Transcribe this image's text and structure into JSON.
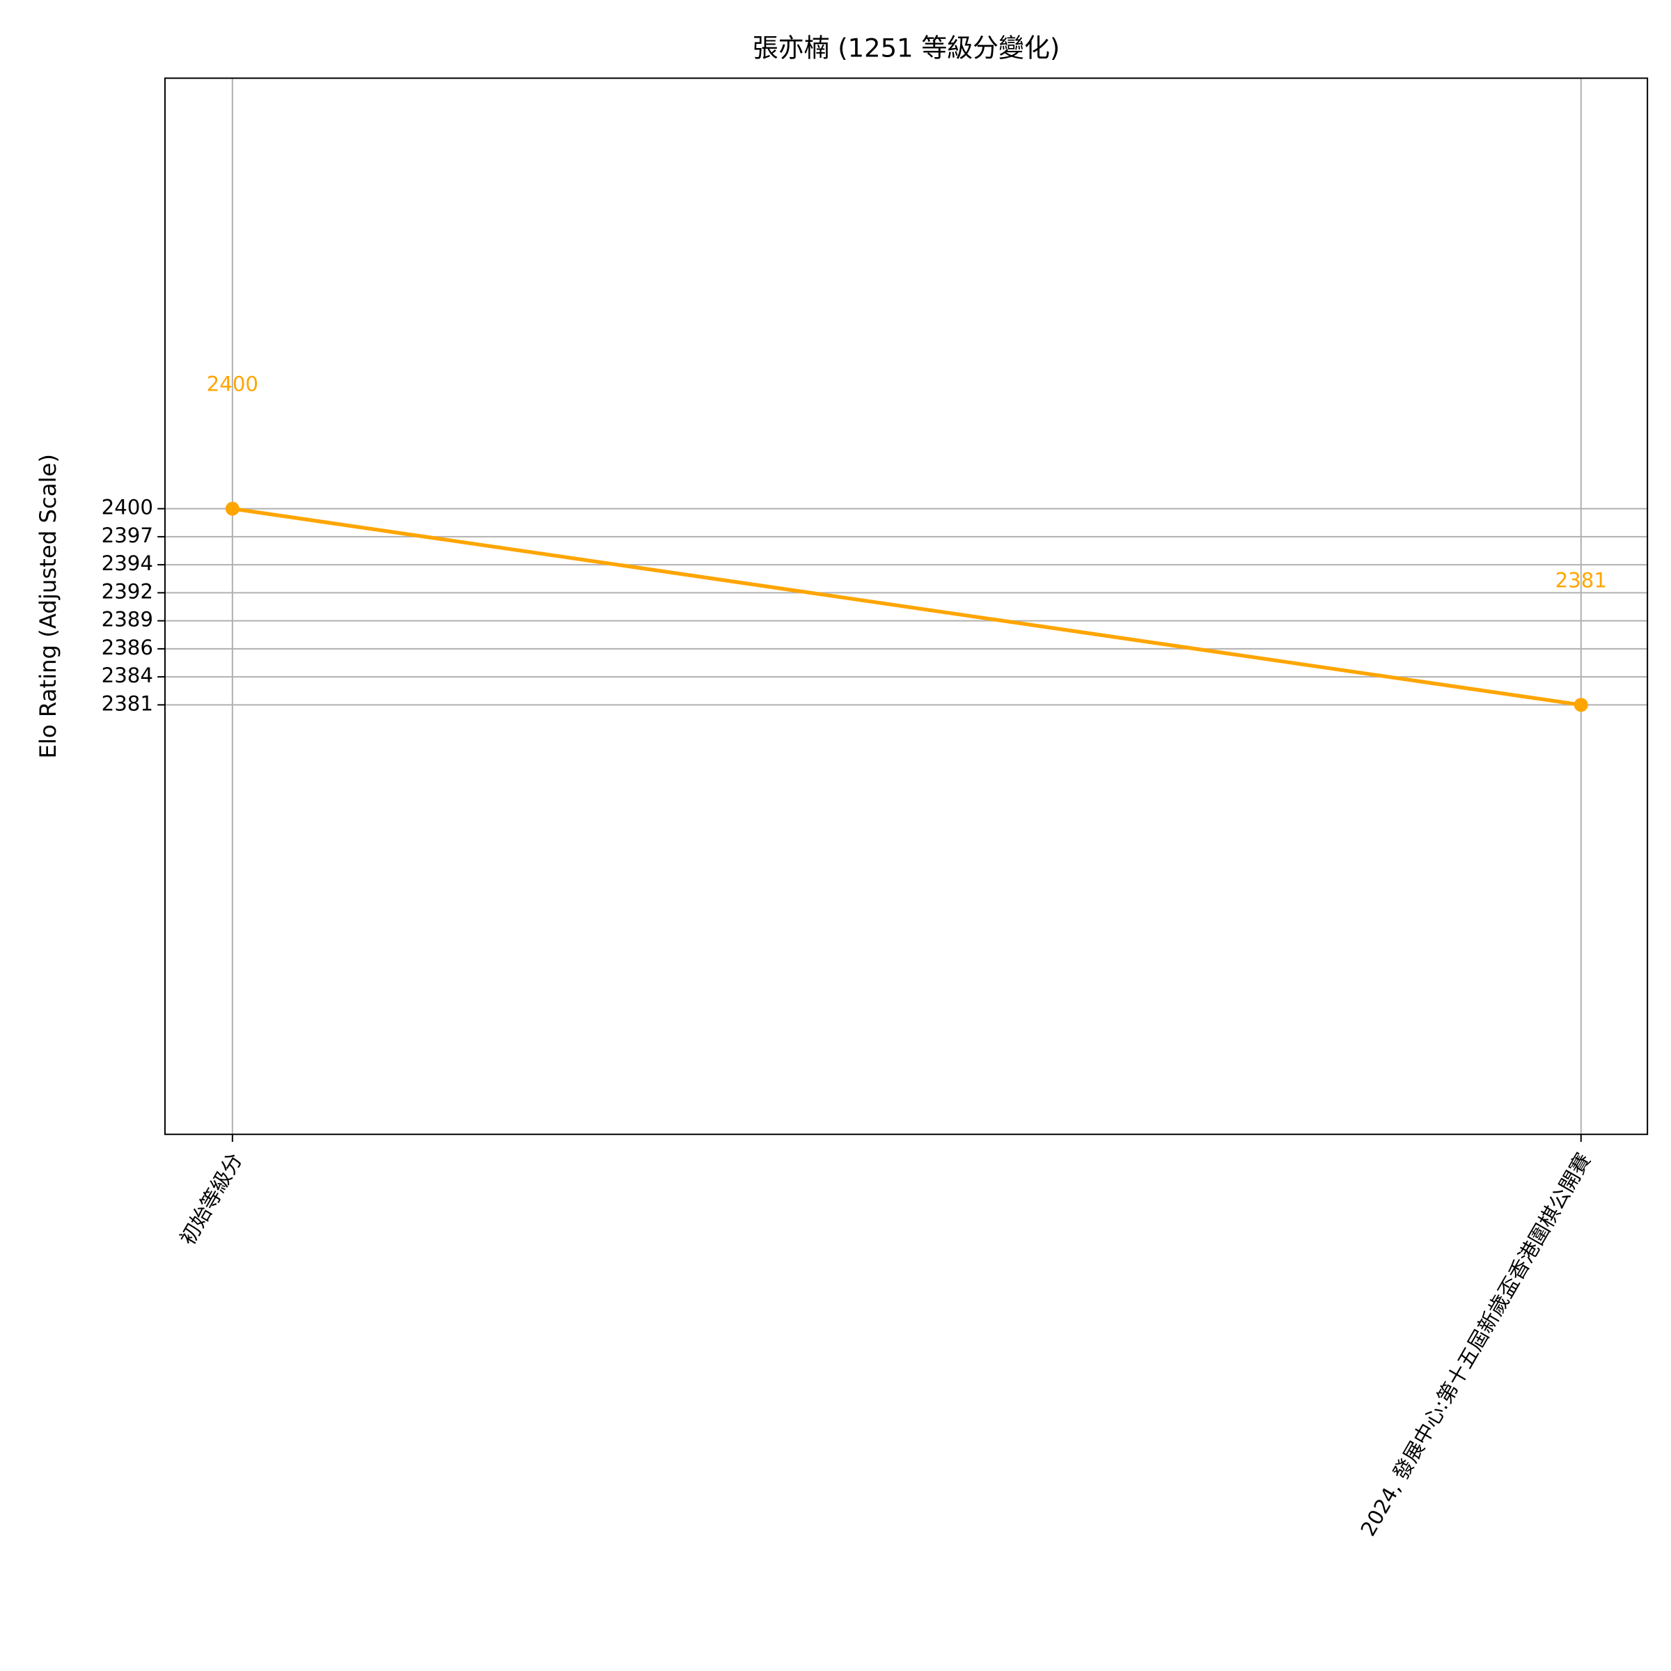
{
  "chart_data": {
    "type": "line",
    "title": "張亦楠 (1251 等級分變化)",
    "ylabel": "Elo Rating (Adjusted Scale)",
    "categories": [
      "初始等級分",
      "2024, 發展中心:第十五屆新歲盃香港圍棋公開賽"
    ],
    "series": [
      {
        "name": "Elo",
        "color": "#ffa500",
        "values": [
          2400,
          2381
        ]
      }
    ],
    "ylim": [
      2339.4,
      2441.7
    ],
    "yticks": [
      {
        "value": 2381,
        "label": "2381"
      },
      {
        "value": 2383.714,
        "label": "2384"
      },
      {
        "value": 2386.429,
        "label": "2386"
      },
      {
        "value": 2389.143,
        "label": "2389"
      },
      {
        "value": 2391.857,
        "label": "2392"
      },
      {
        "value": 2394.571,
        "label": "2394"
      },
      {
        "value": 2397.286,
        "label": "2397"
      },
      {
        "value": 2400,
        "label": "2400"
      }
    ],
    "grid": true
  }
}
